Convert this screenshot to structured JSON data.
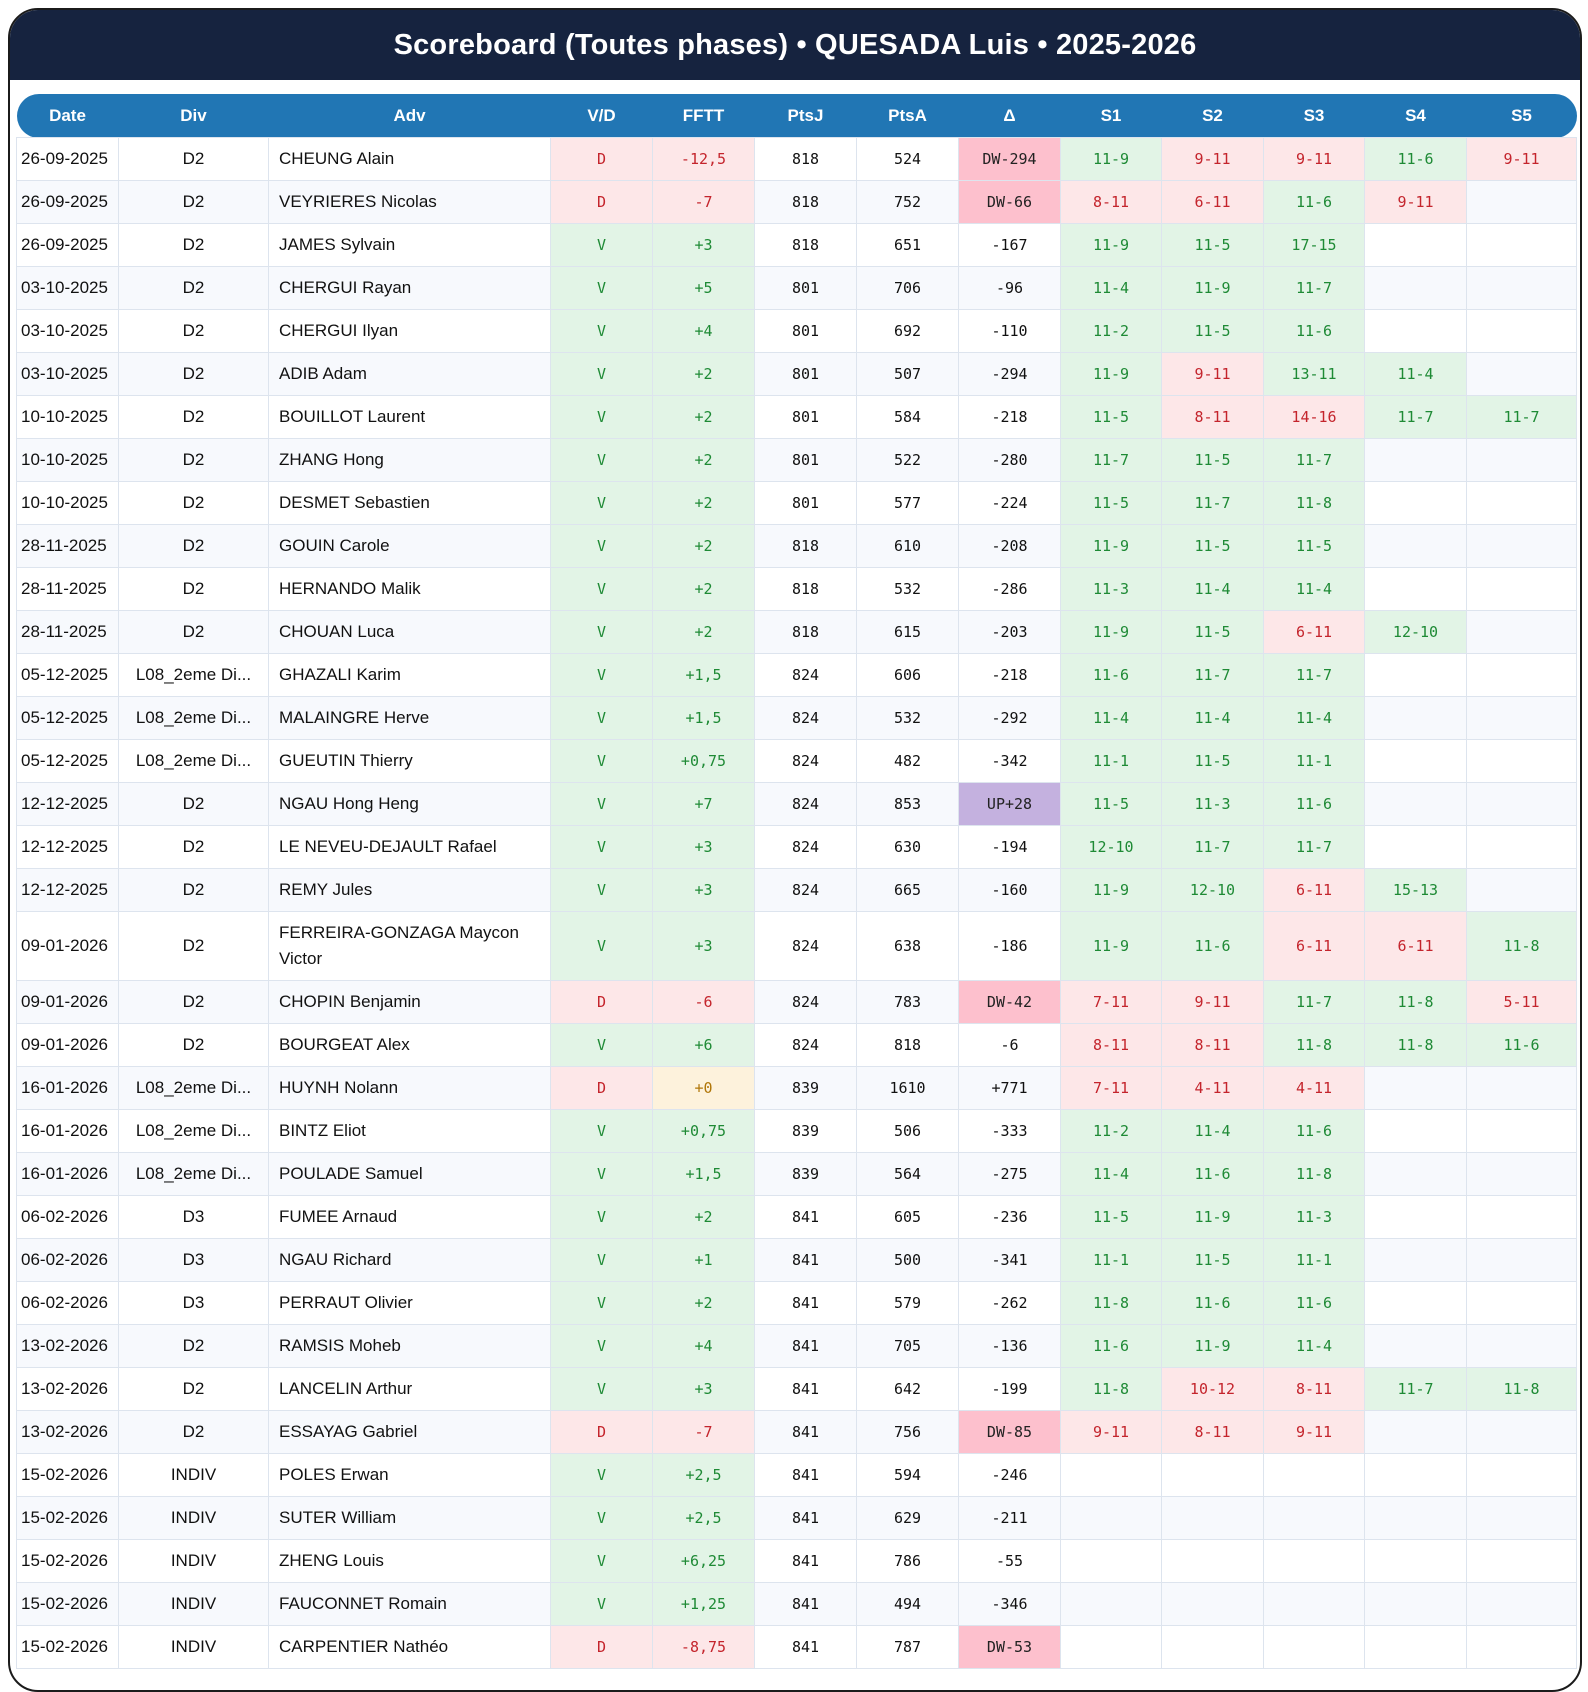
{
  "title": "Scoreboard (Toutes phases) • QUESADA Luis • 2025-2026",
  "colors": {
    "title_bg": "#16233f",
    "header_bg": "#2176b4",
    "win_bg": "#e2f4e6",
    "win_fg": "#1e8a35",
    "loss_bg": "#fde7e8",
    "loss_fg": "#c4242c",
    "zero_bg": "#fdf2dc",
    "zero_fg": "#b07608",
    "dw_bg": "#fdc0cd",
    "up_bg": "#c4b1df"
  },
  "columns": [
    "Date",
    "Div",
    "Adv",
    "V/D",
    "FFTT",
    "PtsJ",
    "PtsA",
    "Δ",
    "S1",
    "S2",
    "S3",
    "S4",
    "S5"
  ],
  "rows": [
    {
      "date": "26-09-2025",
      "div": "D2",
      "adv": "CHEUNG Alain",
      "vd": "D",
      "fftt": "-12,5",
      "ptsj": "818",
      "ptsa": "524",
      "delta": "DW-294",
      "sets": [
        "11-9",
        "9-11",
        "9-11",
        "11-6",
        "9-11"
      ]
    },
    {
      "date": "26-09-2025",
      "div": "D2",
      "adv": "VEYRIERES Nicolas",
      "vd": "D",
      "fftt": "-7",
      "ptsj": "818",
      "ptsa": "752",
      "delta": "DW-66",
      "sets": [
        "8-11",
        "6-11",
        "11-6",
        "9-11",
        ""
      ]
    },
    {
      "date": "26-09-2025",
      "div": "D2",
      "adv": "JAMES Sylvain",
      "vd": "V",
      "fftt": "+3",
      "ptsj": "818",
      "ptsa": "651",
      "delta": "-167",
      "sets": [
        "11-9",
        "11-5",
        "17-15",
        "",
        ""
      ]
    },
    {
      "date": "03-10-2025",
      "div": "D2",
      "adv": "CHERGUI Rayan",
      "vd": "V",
      "fftt": "+5",
      "ptsj": "801",
      "ptsa": "706",
      "delta": "-96",
      "sets": [
        "11-4",
        "11-9",
        "11-7",
        "",
        ""
      ]
    },
    {
      "date": "03-10-2025",
      "div": "D2",
      "adv": "CHERGUI Ilyan",
      "vd": "V",
      "fftt": "+4",
      "ptsj": "801",
      "ptsa": "692",
      "delta": "-110",
      "sets": [
        "11-2",
        "11-5",
        "11-6",
        "",
        ""
      ]
    },
    {
      "date": "03-10-2025",
      "div": "D2",
      "adv": "ADIB Adam",
      "vd": "V",
      "fftt": "+2",
      "ptsj": "801",
      "ptsa": "507",
      "delta": "-294",
      "sets": [
        "11-9",
        "9-11",
        "13-11",
        "11-4",
        ""
      ]
    },
    {
      "date": "10-10-2025",
      "div": "D2",
      "adv": "BOUILLOT Laurent",
      "vd": "V",
      "fftt": "+2",
      "ptsj": "801",
      "ptsa": "584",
      "delta": "-218",
      "sets": [
        "11-5",
        "8-11",
        "14-16",
        "11-7",
        "11-7"
      ]
    },
    {
      "date": "10-10-2025",
      "div": "D2",
      "adv": "ZHANG Hong",
      "vd": "V",
      "fftt": "+2",
      "ptsj": "801",
      "ptsa": "522",
      "delta": "-280",
      "sets": [
        "11-7",
        "11-5",
        "11-7",
        "",
        ""
      ]
    },
    {
      "date": "10-10-2025",
      "div": "D2",
      "adv": "DESMET Sebastien",
      "vd": "V",
      "fftt": "+2",
      "ptsj": "801",
      "ptsa": "577",
      "delta": "-224",
      "sets": [
        "11-5",
        "11-7",
        "11-8",
        "",
        ""
      ]
    },
    {
      "date": "28-11-2025",
      "div": "D2",
      "adv": "GOUIN Carole",
      "vd": "V",
      "fftt": "+2",
      "ptsj": "818",
      "ptsa": "610",
      "delta": "-208",
      "sets": [
        "11-9",
        "11-5",
        "11-5",
        "",
        ""
      ]
    },
    {
      "date": "28-11-2025",
      "div": "D2",
      "adv": "HERNANDO Malik",
      "vd": "V",
      "fftt": "+2",
      "ptsj": "818",
      "ptsa": "532",
      "delta": "-286",
      "sets": [
        "11-3",
        "11-4",
        "11-4",
        "",
        ""
      ]
    },
    {
      "date": "28-11-2025",
      "div": "D2",
      "adv": "CHOUAN Luca",
      "vd": "V",
      "fftt": "+2",
      "ptsj": "818",
      "ptsa": "615",
      "delta": "-203",
      "sets": [
        "11-9",
        "11-5",
        "6-11",
        "12-10",
        ""
      ]
    },
    {
      "date": "05-12-2025",
      "div": "L08_2eme Di...",
      "adv": "GHAZALI Karim",
      "vd": "V",
      "fftt": "+1,5",
      "ptsj": "824",
      "ptsa": "606",
      "delta": "-218",
      "sets": [
        "11-6",
        "11-7",
        "11-7",
        "",
        ""
      ]
    },
    {
      "date": "05-12-2025",
      "div": "L08_2eme Di...",
      "adv": "MALAINGRE Herve",
      "vd": "V",
      "fftt": "+1,5",
      "ptsj": "824",
      "ptsa": "532",
      "delta": "-292",
      "sets": [
        "11-4",
        "11-4",
        "11-4",
        "",
        ""
      ]
    },
    {
      "date": "05-12-2025",
      "div": "L08_2eme Di...",
      "adv": "GUEUTIN Thierry",
      "vd": "V",
      "fftt": "+0,75",
      "ptsj": "824",
      "ptsa": "482",
      "delta": "-342",
      "sets": [
        "11-1",
        "11-5",
        "11-1",
        "",
        ""
      ]
    },
    {
      "date": "12-12-2025",
      "div": "D2",
      "adv": "NGAU Hong Heng",
      "vd": "V",
      "fftt": "+7",
      "ptsj": "824",
      "ptsa": "853",
      "delta": "UP+28",
      "sets": [
        "11-5",
        "11-3",
        "11-6",
        "",
        ""
      ]
    },
    {
      "date": "12-12-2025",
      "div": "D2",
      "adv": "LE NEVEU-DEJAULT Rafael",
      "vd": "V",
      "fftt": "+3",
      "ptsj": "824",
      "ptsa": "630",
      "delta": "-194",
      "sets": [
        "12-10",
        "11-7",
        "11-7",
        "",
        ""
      ]
    },
    {
      "date": "12-12-2025",
      "div": "D2",
      "adv": "REMY Jules",
      "vd": "V",
      "fftt": "+3",
      "ptsj": "824",
      "ptsa": "665",
      "delta": "-160",
      "sets": [
        "11-9",
        "12-10",
        "6-11",
        "15-13",
        ""
      ]
    },
    {
      "date": "09-01-2026",
      "div": "D2",
      "adv": "FERREIRA-GONZAGA Maycon Victor",
      "vd": "V",
      "fftt": "+3",
      "ptsj": "824",
      "ptsa": "638",
      "delta": "-186",
      "sets": [
        "11-9",
        "11-6",
        "6-11",
        "6-11",
        "11-8"
      ],
      "tall": true
    },
    {
      "date": "09-01-2026",
      "div": "D2",
      "adv": "CHOPIN Benjamin",
      "vd": "D",
      "fftt": "-6",
      "ptsj": "824",
      "ptsa": "783",
      "delta": "DW-42",
      "sets": [
        "7-11",
        "9-11",
        "11-7",
        "11-8",
        "5-11"
      ]
    },
    {
      "date": "09-01-2026",
      "div": "D2",
      "adv": "BOURGEAT Alex",
      "vd": "V",
      "fftt": "+6",
      "ptsj": "824",
      "ptsa": "818",
      "delta": "-6",
      "sets": [
        "8-11",
        "8-11",
        "11-8",
        "11-8",
        "11-6"
      ]
    },
    {
      "date": "16-01-2026",
      "div": "L08_2eme Di...",
      "adv": "HUYNH Nolann",
      "vd": "D",
      "fftt": "+0",
      "ptsj": "839",
      "ptsa": "1610",
      "delta": "+771",
      "sets": [
        "7-11",
        "4-11",
        "4-11",
        "",
        ""
      ]
    },
    {
      "date": "16-01-2026",
      "div": "L08_2eme Di...",
      "adv": "BINTZ Eliot",
      "vd": "V",
      "fftt": "+0,75",
      "ptsj": "839",
      "ptsa": "506",
      "delta": "-333",
      "sets": [
        "11-2",
        "11-4",
        "11-6",
        "",
        ""
      ]
    },
    {
      "date": "16-01-2026",
      "div": "L08_2eme Di...",
      "adv": "POULADE Samuel",
      "vd": "V",
      "fftt": "+1,5",
      "ptsj": "839",
      "ptsa": "564",
      "delta": "-275",
      "sets": [
        "11-4",
        "11-6",
        "11-8",
        "",
        ""
      ]
    },
    {
      "date": "06-02-2026",
      "div": "D3",
      "adv": "FUMEE Arnaud",
      "vd": "V",
      "fftt": "+2",
      "ptsj": "841",
      "ptsa": "605",
      "delta": "-236",
      "sets": [
        "11-5",
        "11-9",
        "11-3",
        "",
        ""
      ]
    },
    {
      "date": "06-02-2026",
      "div": "D3",
      "adv": "NGAU Richard",
      "vd": "V",
      "fftt": "+1",
      "ptsj": "841",
      "ptsa": "500",
      "delta": "-341",
      "sets": [
        "11-1",
        "11-5",
        "11-1",
        "",
        ""
      ]
    },
    {
      "date": "06-02-2026",
      "div": "D3",
      "adv": "PERRAUT Olivier",
      "vd": "V",
      "fftt": "+2",
      "ptsj": "841",
      "ptsa": "579",
      "delta": "-262",
      "sets": [
        "11-8",
        "11-6",
        "11-6",
        "",
        ""
      ]
    },
    {
      "date": "13-02-2026",
      "div": "D2",
      "adv": "RAMSIS Moheb",
      "vd": "V",
      "fftt": "+4",
      "ptsj": "841",
      "ptsa": "705",
      "delta": "-136",
      "sets": [
        "11-6",
        "11-9",
        "11-4",
        "",
        ""
      ]
    },
    {
      "date": "13-02-2026",
      "div": "D2",
      "adv": "LANCELIN Arthur",
      "vd": "V",
      "fftt": "+3",
      "ptsj": "841",
      "ptsa": "642",
      "delta": "-199",
      "sets": [
        "11-8",
        "10-12",
        "8-11",
        "11-7",
        "11-8"
      ]
    },
    {
      "date": "13-02-2026",
      "div": "D2",
      "adv": "ESSAYAG Gabriel",
      "vd": "D",
      "fftt": "-7",
      "ptsj": "841",
      "ptsa": "756",
      "delta": "DW-85",
      "sets": [
        "9-11",
        "8-11",
        "9-11",
        "",
        ""
      ]
    },
    {
      "date": "15-02-2026",
      "div": "INDIV",
      "adv": "POLES Erwan",
      "vd": "V",
      "fftt": "+2,5",
      "ptsj": "841",
      "ptsa": "594",
      "delta": "-246",
      "sets": [
        "",
        "",
        "",
        "",
        ""
      ]
    },
    {
      "date": "15-02-2026",
      "div": "INDIV",
      "adv": "SUTER William",
      "vd": "V",
      "fftt": "+2,5",
      "ptsj": "841",
      "ptsa": "629",
      "delta": "-211",
      "sets": [
        "",
        "",
        "",
        "",
        ""
      ]
    },
    {
      "date": "15-02-2026",
      "div": "INDIV",
      "adv": "ZHENG Louis",
      "vd": "V",
      "fftt": "+6,25",
      "ptsj": "841",
      "ptsa": "786",
      "delta": "-55",
      "sets": [
        "",
        "",
        "",
        "",
        ""
      ]
    },
    {
      "date": "15-02-2026",
      "div": "INDIV",
      "adv": "FAUCONNET Romain",
      "vd": "V",
      "fftt": "+1,25",
      "ptsj": "841",
      "ptsa": "494",
      "delta": "-346",
      "sets": [
        "",
        "",
        "",
        "",
        ""
      ]
    },
    {
      "date": "15-02-2026",
      "div": "INDIV",
      "adv": "CARPENTIER Nathéo",
      "vd": "D",
      "fftt": "-8,75",
      "ptsj": "841",
      "ptsa": "787",
      "delta": "DW-53",
      "sets": [
        "",
        "",
        "",
        "",
        ""
      ]
    }
  ]
}
